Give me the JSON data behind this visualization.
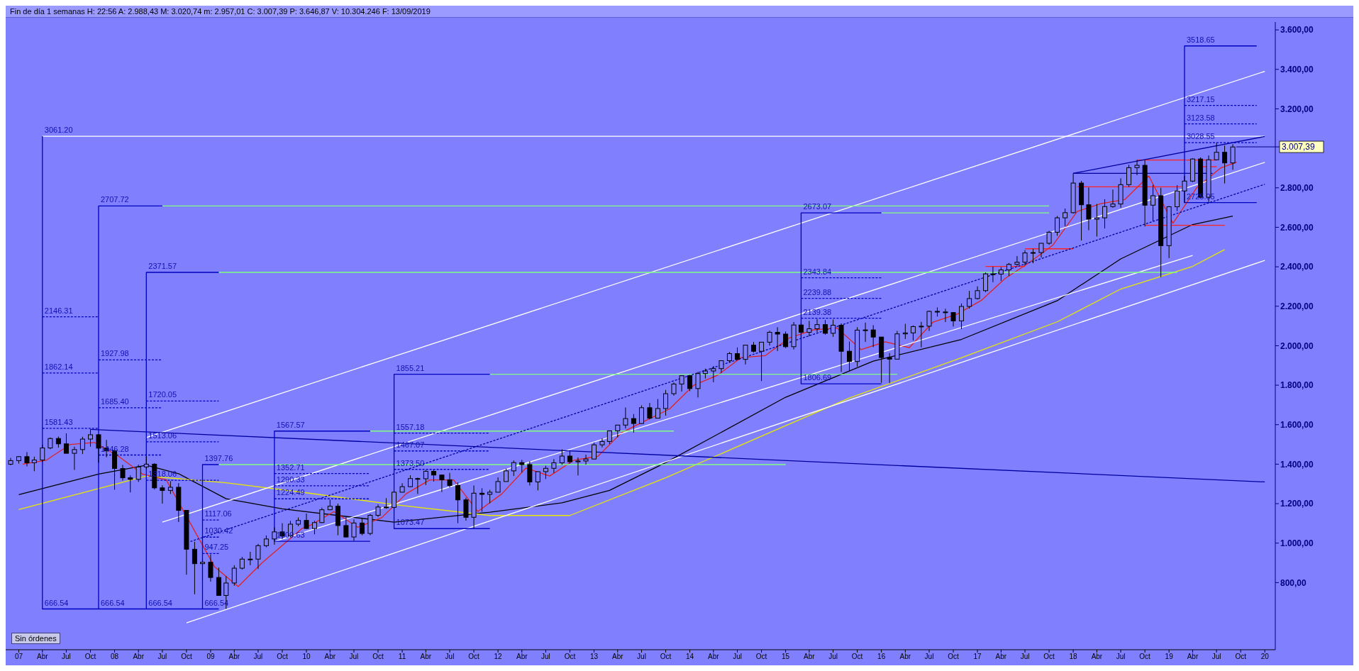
{
  "chart_data": {
    "type": "candlestick",
    "title": "Fin de día 1 semanas  H: 22:56  A: 2.988,43  M: 3.020,74  m: 2.957,01  C: 3.007,39  P: 3.646,87  V: 10.304.246  F: 13/09/2019",
    "color": "#000000",
    "x": [
      "2006-12",
      "2007-01",
      "2007-02",
      "2007-03",
      "2007-04",
      "2007-05",
      "2007-06",
      "2007-07",
      "2007-08",
      "2007-09",
      "2007-10",
      "2007-11",
      "2007-12",
      "2008-01",
      "2008-02",
      "2008-03",
      "2008-04",
      "2008-05",
      "2008-06",
      "2008-07",
      "2008-08",
      "2008-09",
      "2008-10",
      "2008-11",
      "2008-12",
      "2009-01",
      "2009-02",
      "2009-03",
      "2009-04",
      "2009-05",
      "2009-06",
      "2009-07",
      "2009-08",
      "2009-09",
      "2009-10",
      "2009-11",
      "2009-12",
      "2010-01",
      "2010-02",
      "2010-03",
      "2010-04",
      "2010-05",
      "2010-06",
      "2010-07",
      "2010-08",
      "2010-09",
      "2010-10",
      "2010-11",
      "2010-12",
      "2011-01",
      "2011-02",
      "2011-03",
      "2011-04",
      "2011-05",
      "2011-06",
      "2011-07",
      "2011-08",
      "2011-09",
      "2011-10",
      "2011-11",
      "2011-12",
      "2012-01",
      "2012-02",
      "2012-03",
      "2012-04",
      "2012-05",
      "2012-06",
      "2012-07",
      "2012-08",
      "2012-09",
      "2012-10",
      "2012-11",
      "2012-12",
      "2013-01",
      "2013-02",
      "2013-03",
      "2013-04",
      "2013-05",
      "2013-06",
      "2013-07",
      "2013-08",
      "2013-09",
      "2013-10",
      "2013-11",
      "2013-12",
      "2014-01",
      "2014-02",
      "2014-03",
      "2014-04",
      "2014-05",
      "2014-06",
      "2014-07",
      "2014-08",
      "2014-09",
      "2014-10",
      "2014-11",
      "2014-12",
      "2015-01",
      "2015-02",
      "2015-03",
      "2015-04",
      "2015-05",
      "2015-06",
      "2015-07",
      "2015-08",
      "2015-09",
      "2015-10",
      "2015-11",
      "2015-12",
      "2016-01",
      "2016-02",
      "2016-03",
      "2016-04",
      "2016-05",
      "2016-06",
      "2016-07",
      "2016-08",
      "2016-09",
      "2016-10",
      "2016-11",
      "2016-12",
      "2017-01",
      "2017-02",
      "2017-03",
      "2017-04",
      "2017-05",
      "2017-06",
      "2017-07",
      "2017-08",
      "2017-09",
      "2017-10",
      "2017-11",
      "2017-12",
      "2018-01",
      "2018-02",
      "2018-03",
      "2018-04",
      "2018-05",
      "2018-06",
      "2018-07",
      "2018-08",
      "2018-09",
      "2018-10",
      "2018-11",
      "2018-12",
      "2019-01",
      "2019-02",
      "2019-03",
      "2019-04",
      "2019-05",
      "2019-06",
      "2019-07",
      "2019-08",
      "2019-09"
    ],
    "ohlc": [
      [
        1400,
        1432,
        1394,
        1418
      ],
      [
        1418,
        1441,
        1403,
        1438
      ],
      [
        1438,
        1461,
        1389,
        1407
      ],
      [
        1407,
        1438,
        1364,
        1421
      ],
      [
        1421,
        1499,
        1411,
        1482
      ],
      [
        1482,
        1535,
        1476,
        1530
      ],
      [
        1530,
        1540,
        1484,
        1503
      ],
      [
        1503,
        1556,
        1455,
        1455
      ],
      [
        1455,
        1489,
        1371,
        1474
      ],
      [
        1474,
        1539,
        1451,
        1527
      ],
      [
        1527,
        1576,
        1489,
        1549
      ],
      [
        1549,
        1552,
        1407,
        1481
      ],
      [
        1481,
        1523,
        1435,
        1468
      ],
      [
        1468,
        1471,
        1271,
        1378
      ],
      [
        1378,
        1396,
        1317,
        1331
      ],
      [
        1331,
        1343,
        1257,
        1323
      ],
      [
        1323,
        1397,
        1310,
        1386
      ],
      [
        1386,
        1440,
        1374,
        1400
      ],
      [
        1400,
        1405,
        1272,
        1280
      ],
      [
        1280,
        1293,
        1200,
        1267
      ],
      [
        1267,
        1314,
        1249,
        1283
      ],
      [
        1283,
        1304,
        1107,
        1166
      ],
      [
        1166,
        1167,
        840,
        969
      ],
      [
        969,
        1007,
        741,
        896
      ],
      [
        896,
        919,
        816,
        903
      ],
      [
        903,
        943,
        805,
        826
      ],
      [
        826,
        876,
        735,
        735
      ],
      [
        735,
        832,
        667,
        798
      ],
      [
        798,
        888,
        784,
        873
      ],
      [
        873,
        930,
        866,
        919
      ],
      [
        919,
        956,
        888,
        919
      ],
      [
        919,
        996,
        869,
        987
      ],
      [
        987,
        1039,
        979,
        1021
      ],
      [
        1021,
        1080,
        992,
        1057
      ],
      [
        1057,
        1101,
        1020,
        1036
      ],
      [
        1036,
        1113,
        1030,
        1096
      ],
      [
        1096,
        1130,
        1086,
        1115
      ],
      [
        1115,
        1150,
        1071,
        1074
      ],
      [
        1074,
        1113,
        1045,
        1104
      ],
      [
        1104,
        1180,
        1102,
        1169
      ],
      [
        1169,
        1220,
        1167,
        1187
      ],
      [
        1187,
        1200,
        1040,
        1089
      ],
      [
        1089,
        1131,
        1028,
        1031
      ],
      [
        1031,
        1120,
        1011,
        1102
      ],
      [
        1102,
        1129,
        1040,
        1049
      ],
      [
        1049,
        1148,
        1040,
        1141
      ],
      [
        1141,
        1196,
        1132,
        1183
      ],
      [
        1183,
        1228,
        1174,
        1181
      ],
      [
        1181,
        1263,
        1174,
        1258
      ],
      [
        1258,
        1303,
        1257,
        1286
      ],
      [
        1286,
        1344,
        1284,
        1327
      ],
      [
        1327,
        1332,
        1249,
        1326
      ],
      [
        1326,
        1370,
        1294,
        1364
      ],
      [
        1364,
        1371,
        1312,
        1345
      ],
      [
        1345,
        1346,
        1259,
        1321
      ],
      [
        1321,
        1356,
        1282,
        1292
      ],
      [
        1292,
        1308,
        1101,
        1219
      ],
      [
        1219,
        1230,
        1114,
        1131
      ],
      [
        1131,
        1292,
        1075,
        1253
      ],
      [
        1253,
        1278,
        1159,
        1247
      ],
      [
        1247,
        1270,
        1202,
        1258
      ],
      [
        1258,
        1333,
        1258,
        1312
      ],
      [
        1312,
        1378,
        1312,
        1366
      ],
      [
        1366,
        1419,
        1340,
        1408
      ],
      [
        1408,
        1422,
        1358,
        1398
      ],
      [
        1398,
        1415,
        1292,
        1310
      ],
      [
        1310,
        1363,
        1267,
        1362
      ],
      [
        1362,
        1392,
        1325,
        1379
      ],
      [
        1379,
        1426,
        1355,
        1407
      ],
      [
        1407,
        1475,
        1397,
        1441
      ],
      [
        1441,
        1470,
        1403,
        1412
      ],
      [
        1412,
        1434,
        1343,
        1416
      ],
      [
        1416,
        1448,
        1398,
        1426
      ],
      [
        1426,
        1510,
        1426,
        1498
      ],
      [
        1498,
        1531,
        1485,
        1515
      ],
      [
        1515,
        1570,
        1502,
        1569
      ],
      [
        1569,
        1598,
        1536,
        1598
      ],
      [
        1598,
        1687,
        1581,
        1631
      ],
      [
        1631,
        1654,
        1560,
        1606
      ],
      [
        1606,
        1698,
        1605,
        1686
      ],
      [
        1686,
        1710,
        1627,
        1633
      ],
      [
        1633,
        1730,
        1633,
        1682
      ],
      [
        1682,
        1776,
        1646,
        1757
      ],
      [
        1757,
        1814,
        1747,
        1806
      ],
      [
        1806,
        1849,
        1768,
        1848
      ],
      [
        1848,
        1851,
        1770,
        1783
      ],
      [
        1783,
        1867,
        1738,
        1859
      ],
      [
        1859,
        1884,
        1834,
        1872
      ],
      [
        1872,
        1897,
        1815,
        1884
      ],
      [
        1884,
        1925,
        1863,
        1924
      ],
      [
        1924,
        1968,
        1916,
        1960
      ],
      [
        1960,
        1991,
        1931,
        1931
      ],
      [
        1931,
        2005,
        1905,
        2003
      ],
      [
        2003,
        2019,
        1965,
        1972
      ],
      [
        1972,
        2018,
        1821,
        2018
      ],
      [
        2018,
        2076,
        2001,
        2068
      ],
      [
        2068,
        2094,
        1973,
        2059
      ],
      [
        2059,
        2072,
        1988,
        1995
      ],
      [
        1995,
        2120,
        1981,
        2105
      ],
      [
        2105,
        2117,
        2040,
        2068
      ],
      [
        2068,
        2126,
        2048,
        2086
      ],
      [
        2086,
        2135,
        2068,
        2107
      ],
      [
        2107,
        2130,
        2056,
        2063
      ],
      [
        2063,
        2133,
        2045,
        2104
      ],
      [
        2104,
        2113,
        1867,
        1972
      ],
      [
        1972,
        2021,
        1872,
        1920
      ],
      [
        1920,
        2094,
        1894,
        2079
      ],
      [
        2079,
        2117,
        2019,
        2080
      ],
      [
        2080,
        2104,
        1993,
        2044
      ],
      [
        2044,
        2044,
        1812,
        1940
      ],
      [
        1940,
        1963,
        1810,
        1932
      ],
      [
        1932,
        2075,
        1932,
        2060
      ],
      [
        2060,
        2111,
        2034,
        2065
      ],
      [
        2065,
        2103,
        2026,
        2097
      ],
      [
        2097,
        2121,
        1992,
        2099
      ],
      [
        2099,
        2178,
        2075,
        2174
      ],
      [
        2174,
        2194,
        2148,
        2171
      ],
      [
        2171,
        2187,
        2120,
        2168
      ],
      [
        2168,
        2169,
        2097,
        2126
      ],
      [
        2126,
        2214,
        2084,
        2199
      ],
      [
        2199,
        2278,
        2188,
        2239
      ],
      [
        2239,
        2301,
        2234,
        2279
      ],
      [
        2279,
        2371,
        2271,
        2364
      ],
      [
        2364,
        2401,
        2322,
        2363
      ],
      [
        2363,
        2398,
        2328,
        2384
      ],
      [
        2384,
        2419,
        2353,
        2412
      ],
      [
        2412,
        2454,
        2406,
        2423
      ],
      [
        2423,
        2484,
        2407,
        2470
      ],
      [
        2470,
        2491,
        2418,
        2472
      ],
      [
        2472,
        2520,
        2447,
        2519
      ],
      [
        2519,
        2582,
        2511,
        2575
      ],
      [
        2575,
        2657,
        2557,
        2648
      ],
      [
        2648,
        2695,
        2605,
        2674
      ],
      [
        2674,
        2873,
        2670,
        2824
      ],
      [
        2824,
        2835,
        2533,
        2714
      ],
      [
        2714,
        2801,
        2585,
        2641
      ],
      [
        2641,
        2718,
        2553,
        2648
      ],
      [
        2648,
        2742,
        2594,
        2705
      ],
      [
        2705,
        2791,
        2699,
        2718
      ],
      [
        2718,
        2848,
        2699,
        2816
      ],
      [
        2816,
        2917,
        2803,
        2902
      ],
      [
        2902,
        2941,
        2864,
        2914
      ],
      [
        2914,
        2940,
        2604,
        2712
      ],
      [
        2712,
        2815,
        2631,
        2760
      ],
      [
        2760,
        2800,
        2347,
        2507
      ],
      [
        2507,
        2708,
        2444,
        2704
      ],
      [
        2704,
        2813,
        2682,
        2784
      ],
      [
        2784,
        2860,
        2723,
        2834
      ],
      [
        2834,
        2949,
        2829,
        2946
      ],
      [
        2946,
        2954,
        2750,
        2752
      ],
      [
        2752,
        2964,
        2728,
        2942
      ],
      [
        2942,
        3028,
        2939,
        2980
      ],
      [
        2980,
        3014,
        2822,
        2926
      ],
      [
        2926,
        3021,
        2891,
        3007
      ]
    ],
    "series": [
      {
        "type": "line",
        "color": "#000000",
        "x": [
          "2007-01",
          "2007-11",
          "2008-05",
          "2008-09",
          "2009-03",
          "2009-10",
          "2010-12",
          "2011-12",
          "2012-09",
          "2013-03",
          "2013-10",
          "2015-01",
          "2015-12",
          "2016-11",
          "2017-11",
          "2018-07",
          "2019-04",
          "2019-09"
        ],
        "values": [
          1246,
          1350,
          1395,
          1352,
          1225,
          1174,
          1106,
          1157,
          1204,
          1267,
          1408,
          1739,
          1922,
          2032,
          2228,
          2440,
          2614,
          2657
        ]
      },
      {
        "type": "line",
        "color": "#e8e800",
        "x": [
          "2007-01",
          "2008-05",
          "2009-03",
          "2010-01",
          "2010-12",
          "2011-12",
          "2012-10",
          "2013-10",
          "2015-09",
          "2016-11",
          "2017-11",
          "2018-07",
          "2019-04",
          "2019-08"
        ],
        "values": [
          1170,
          1340,
          1306,
          1255,
          1195,
          1140,
          1140,
          1331,
          1735,
          1939,
          2121,
          2287,
          2402,
          2487
        ]
      },
      {
        "type": "line",
        "color": "#e02020",
        "x": [
          "2007-01-16",
          "2007-04-16",
          "2007-07-16",
          "2007-10-16",
          "2008-01-16",
          "2008-04-16",
          "2008-07-16",
          "2008-10-16",
          "2009-01-16",
          "2009-04-16",
          "2009-07-16",
          "2009-12-16",
          "2010-01-16",
          "2010-04-16",
          "2010-07-16",
          "2010-10-16",
          "2011-01-16",
          "2011-04-16",
          "2011-07-16",
          "2011-10-16",
          "2012-01-16",
          "2012-04-16",
          "2012-07-16",
          "2012-10-16",
          "2013-01-16",
          "2013-04-16",
          "2013-07-16",
          "2013-10-16",
          "2014-01-16",
          "2014-04-16",
          "2014-07-16",
          "2014-10-16",
          "2015-01-16",
          "2015-04-16",
          "2015-07-16",
          "2015-10-16",
          "2016-01-16",
          "2016-04-16",
          "2016-07-16",
          "2016-10-16",
          "2017-01-16",
          "2017-04-16",
          "2017-07-16",
          "2017-10-16",
          "2018-01-16",
          "2018-04-16",
          "2018-07-16",
          "2018-10-16",
          "2019-01-16",
          "2019-04-16",
          "2019-07-16",
          "2019-09-16"
        ],
        "values": [
          1400,
          1420,
          1500,
          1510,
          1440,
          1350,
          1320,
          1100,
          880,
          780,
          900,
          1075,
          1090,
          1160,
          1080,
          1130,
          1250,
          1320,
          1320,
          1160,
          1250,
          1380,
          1340,
          1420,
          1440,
          1560,
          1620,
          1680,
          1800,
          1850,
          1940,
          1950,
          2040,
          2080,
          2090,
          1980,
          2020,
          1990,
          2120,
          2160,
          2230,
          2340,
          2420,
          2510,
          2680,
          2720,
          2740,
          2860,
          2620,
          2800,
          2900,
          2930
        ]
      },
      {
        "type": "line",
        "color": "#ffffff",
        "x": [
          "2008-05",
          "2020-01"
        ],
        "values": [
          1535,
          3390
        ]
      },
      {
        "type": "line",
        "color": "#ffffff",
        "x": [
          "2008-07",
          "2020-01"
        ],
        "values": [
          1106,
          2929
        ]
      },
      {
        "type": "line",
        "color": "#ffffff",
        "x": [
          "2008-10",
          "2020-01"
        ],
        "values": [
          596,
          2432
        ]
      },
      {
        "type": "line",
        "color": "#ffffff",
        "x": [
          "2009-09",
          "2019-04"
        ],
        "values": [
          1008,
          2457
        ]
      },
      {
        "type": "line",
        "color": "#ffffff",
        "x": [
          "2007-04",
          "2020-01"
        ],
        "values": [
          3061.2,
          3061.2
        ]
      },
      {
        "type": "line",
        "color": "#80ff80",
        "x": [
          "2008-07",
          "2017-10"
        ],
        "values": [
          2707.72,
          2707.72
        ]
      },
      {
        "type": "line",
        "color": "#80ff80",
        "x": [
          "2009-02",
          "2019-02"
        ],
        "values": [
          2371.57,
          2371.57
        ]
      },
      {
        "type": "line",
        "color": "#80ff80",
        "x": [
          "2009-02",
          "2015-01"
        ],
        "values": [
          1397.76,
          1397.76
        ]
      },
      {
        "type": "line",
        "color": "#80ff80",
        "x": [
          "2010-09",
          "2013-11"
        ],
        "values": [
          1567.57,
          1567.57
        ]
      },
      {
        "type": "line",
        "color": "#80ff80",
        "x": [
          "2011-12",
          "2016-03"
        ],
        "values": [
          1855.21,
          1855.21
        ]
      },
      {
        "type": "line",
        "color": "#80ff80",
        "x": [
          "2016-01",
          "2017-10"
        ],
        "values": [
          2673.07,
          2673.07
        ]
      },
      {
        "type": "line",
        "color": "#ff2020",
        "x": [
          "2018-09",
          "2019-07"
        ],
        "values": [
          2941,
          2941
        ]
      },
      {
        "type": "line",
        "color": "#ff2020",
        "x": [
          "2018-01-16",
          "2019-02-16"
        ],
        "values": [
          2805,
          2805
        ]
      },
      {
        "type": "line",
        "color": "#ff2020",
        "x": [
          "2018-10",
          "2019-08"
        ],
        "values": [
          2610,
          2610
        ]
      },
      {
        "type": "line",
        "color": "#ff2020",
        "x": [
          "2019-05",
          "2019-07"
        ],
        "values": [
          2907,
          2907
        ]
      },
      {
        "type": "line",
        "color": "#ff2020",
        "x": [
          "2017-07",
          "2018-01"
        ],
        "values": [
          2491,
          2491
        ]
      },
      {
        "type": "line",
        "color": "#ff2020",
        "x": [
          "2017-02",
          "2017-07"
        ],
        "values": [
          2402,
          2402
        ]
      },
      {
        "type": "line",
        "color": "#0000a0",
        "x": [
          "2007-10",
          "2020-01"
        ],
        "values": [
          1576,
          1310
        ]
      },
      {
        "type": "line",
        "color": "#0000a0",
        "x": [
          "2018-01",
          "2020-01"
        ],
        "values": [
          2873,
          3060
        ]
      },
      {
        "type": "line",
        "color": "#0000a0",
        "x": [
          "2018-01",
          "2019-06-16"
        ],
        "values": [
          2873,
          2873
        ]
      },
      {
        "type": "line",
        "color": "#0000a0",
        "line_style": "dashed",
        "x": [
          "2008-10-16",
          "2020-01"
        ],
        "values": [
          1008,
          2818
        ]
      },
      {
        "type": "line",
        "color": "#0000c0",
        "x": [
          "2007-04",
          "2007-04",
          "2007-04",
          "2009-02"
        ],
        "values": [
          3061.2,
          666.54,
          666.54,
          666.54
        ]
      },
      {
        "type": "line",
        "color": "#0000c0",
        "x": [
          "2008-07",
          "2007-11",
          "2007-11"
        ],
        "values": [
          2707.72,
          2707.72,
          666.54
        ]
      },
      {
        "type": "line",
        "color": "#0000c0",
        "x": [
          "2009-02",
          "2008-05",
          "2008-05"
        ],
        "values": [
          2371.57,
          2371.57,
          666.54
        ]
      },
      {
        "type": "line",
        "color": "#0000c0",
        "x": [
          "2009-02",
          "2008-12",
          "2008-12"
        ],
        "values": [
          1397.76,
          1397.76,
          666.54
        ]
      },
      {
        "type": "line",
        "color": "#0000c0",
        "x": [
          "2010-09",
          "2009-09",
          "2009-09",
          "2010-09"
        ],
        "values": [
          1567.57,
          1567.57,
          1009.63,
          1009.63
        ]
      },
      {
        "type": "line",
        "color": "#0000c0",
        "x": [
          "2011-12",
          "2010-12",
          "2010-12",
          "2011-12"
        ],
        "values": [
          1855.21,
          1855.21,
          1073.47,
          1073.47
        ]
      },
      {
        "type": "line",
        "color": "#0000c0",
        "x": [
          "2016-01",
          "2015-03",
          "2015-03",
          "2016-01"
        ],
        "values": [
          2673.07,
          2673.07,
          1806.69,
          1806.69
        ]
      },
      {
        "type": "line",
        "color": "#0000c0",
        "x": [
          "2019-12",
          "2019-03",
          "2019-03",
          "2019-12"
        ],
        "values": [
          3518.65,
          3518.65,
          2725.05,
          2725.05
        ]
      },
      {
        "type": "line",
        "color": "#0000c0",
        "line_style": "dashed",
        "x": [
          "2007-04",
          "2007-11"
        ],
        "values": [
          2146.31,
          2146.31
        ]
      },
      {
        "type": "line",
        "color": "#0000c0",
        "line_style": "dashed",
        "x": [
          "2007-04",
          "2007-11"
        ],
        "values": [
          1862.14,
          1862.14
        ]
      },
      {
        "type": "line",
        "color": "#0000c0",
        "line_style": "dashed",
        "x": [
          "2007-04",
          "2007-11"
        ],
        "values": [
          1581.43,
          1581.43
        ]
      },
      {
        "type": "line",
        "color": "#0000c0",
        "line_style": "dashed",
        "x": [
          "2007-11",
          "2008-07"
        ],
        "values": [
          1927.98,
          1927.98
        ]
      },
      {
        "type": "line",
        "color": "#0000c0",
        "line_style": "dashed",
        "x": [
          "2007-11",
          "2008-07"
        ],
        "values": [
          1685.4,
          1685.4
        ]
      },
      {
        "type": "line",
        "color": "#0000c0",
        "line_style": "dashed",
        "x": [
          "2007-11",
          "2008-07"
        ],
        "values": [
          1446.28,
          1446.28
        ]
      },
      {
        "type": "line",
        "color": "#0000c0",
        "line_style": "dashed",
        "x": [
          "2008-05",
          "2009-02"
        ],
        "values": [
          1720.05,
          1720.05
        ]
      },
      {
        "type": "line",
        "color": "#0000c0",
        "line_style": "dashed",
        "x": [
          "2008-05",
          "2009-02"
        ],
        "values": [
          1513.06,
          1513.06
        ]
      },
      {
        "type": "line",
        "color": "#0000c0",
        "line_style": "dashed",
        "x": [
          "2008-05",
          "2009-02"
        ],
        "values": [
          1318.06,
          1318.06
        ]
      },
      {
        "type": "line",
        "color": "#0000c0",
        "line_style": "dashed",
        "x": [
          "2008-12",
          "2009-02"
        ],
        "values": [
          1117.06,
          1117.06
        ]
      },
      {
        "type": "line",
        "color": "#0000c0",
        "line_style": "dashed",
        "x": [
          "2008-12",
          "2009-02"
        ],
        "values": [
          1030.42,
          1030.42
        ]
      },
      {
        "type": "line",
        "color": "#0000c0",
        "line_style": "dashed",
        "x": [
          "2008-12",
          "2009-02"
        ],
        "values": [
          947.25,
          947.25
        ]
      },
      {
        "type": "line",
        "color": "#0000c0",
        "line_style": "dashed",
        "x": [
          "2009-09",
          "2010-09"
        ],
        "values": [
          1352.71,
          1352.71
        ]
      },
      {
        "type": "line",
        "color": "#0000c0",
        "line_style": "dashed",
        "x": [
          "2009-09",
          "2010-09"
        ],
        "values": [
          1290.33,
          1290.33
        ]
      },
      {
        "type": "line",
        "color": "#0000c0",
        "line_style": "dashed",
        "x": [
          "2009-09",
          "2010-09"
        ],
        "values": [
          1224.49,
          1224.49
        ]
      },
      {
        "type": "line",
        "color": "#0000c0",
        "line_style": "dashed",
        "x": [
          "2010-12",
          "2011-12"
        ],
        "values": [
          1557.18,
          1557.18
        ]
      },
      {
        "type": "line",
        "color": "#0000c0",
        "line_style": "dashed",
        "x": [
          "2010-12",
          "2011-12"
        ],
        "values": [
          1467.07,
          1467.07
        ]
      },
      {
        "type": "line",
        "color": "#0000c0",
        "line_style": "dashed",
        "x": [
          "2010-12",
          "2011-12"
        ],
        "values": [
          1373.5,
          1373.5
        ]
      },
      {
        "type": "line",
        "color": "#0000c0",
        "line_style": "dashed",
        "x": [
          "2015-03",
          "2016-01"
        ],
        "values": [
          2343.84,
          2343.84
        ]
      },
      {
        "type": "line",
        "color": "#0000c0",
        "line_style": "dashed",
        "x": [
          "2015-03",
          "2016-01"
        ],
        "values": [
          2239.88,
          2239.88
        ]
      },
      {
        "type": "line",
        "color": "#0000c0",
        "line_style": "dashed",
        "x": [
          "2015-03",
          "2016-01"
        ],
        "values": [
          2139.38,
          2139.38
        ]
      },
      {
        "type": "line",
        "color": "#0000c0",
        "line_style": "dashed",
        "x": [
          "2019-03",
          "2019-12"
        ],
        "values": [
          3217.15,
          3217.15
        ]
      },
      {
        "type": "line",
        "color": "#0000c0",
        "line_style": "dashed",
        "x": [
          "2019-03",
          "2019-12"
        ],
        "values": [
          3123.58,
          3123.58
        ]
      },
      {
        "type": "line",
        "color": "#0000c0",
        "line_style": "dashed",
        "x": [
          "2019-03",
          "2019-12"
        ],
        "values": [
          3028.55,
          3028.55
        ]
      }
    ],
    "annotations": [
      {
        "text": "3061.20",
        "x": "2007-04",
        "y": 3061.2
      },
      {
        "text": "2146.31",
        "x": "2007-04",
        "y": 2146.31
      },
      {
        "text": "1862.14",
        "x": "2007-04",
        "y": 1862.14
      },
      {
        "text": "1581.43",
        "x": "2007-04",
        "y": 1581.43
      },
      {
        "text": "666.54",
        "x": "2007-04",
        "y": 666.54
      },
      {
        "text": "2707.72",
        "x": "2007-11",
        "y": 2707.72
      },
      {
        "text": "1927.98",
        "x": "2007-11",
        "y": 1927.98
      },
      {
        "text": "1685.40",
        "x": "2007-11",
        "y": 1685.4
      },
      {
        "text": "1446.28",
        "x": "2007-11",
        "y": 1446.28
      },
      {
        "text": "666.54",
        "x": "2007-11",
        "y": 666.54
      },
      {
        "text": "2371.57",
        "x": "2008-05",
        "y": 2371.57
      },
      {
        "text": "1720.05",
        "x": "2008-05",
        "y": 1720.05
      },
      {
        "text": "1513.06",
        "x": "2008-05",
        "y": 1513.06
      },
      {
        "text": "1318.06",
        "x": "2008-05",
        "y": 1318.06
      },
      {
        "text": "666.54",
        "x": "2008-05",
        "y": 666.54
      },
      {
        "text": "1397.76",
        "x": "2008-12",
        "y": 1397.76
      },
      {
        "text": "1117.06",
        "x": "2008-12",
        "y": 1117.06
      },
      {
        "text": "1030.42",
        "x": "2008-12",
        "y": 1030.42
      },
      {
        "text": "947.25",
        "x": "2008-12",
        "y": 947.25
      },
      {
        "text": "666.54",
        "x": "2008-12",
        "y": 666.54
      },
      {
        "text": "1567.57",
        "x": "2009-09",
        "y": 1567.57
      },
      {
        "text": "1352.71",
        "x": "2009-09",
        "y": 1352.71
      },
      {
        "text": "1290.33",
        "x": "2009-09",
        "y": 1290.33
      },
      {
        "text": "1224.49",
        "x": "2009-09",
        "y": 1224.49
      },
      {
        "text": "1009.63",
        "x": "2009-09",
        "y": 1009.63
      },
      {
        "text": "1855.21",
        "x": "2010-12",
        "y": 1855.21
      },
      {
        "text": "1557.18",
        "x": "2010-12",
        "y": 1557.18
      },
      {
        "text": "1467.07",
        "x": "2010-12",
        "y": 1467.07
      },
      {
        "text": "1373.50",
        "x": "2010-12",
        "y": 1373.5
      },
      {
        "text": "1073.47",
        "x": "2010-12",
        "y": 1073.47
      },
      {
        "text": "2673.07",
        "x": "2015-03",
        "y": 2673.07
      },
      {
        "text": "2343.84",
        "x": "2015-03",
        "y": 2343.84
      },
      {
        "text": "2239.88",
        "x": "2015-03",
        "y": 2239.88
      },
      {
        "text": "2139.38",
        "x": "2015-03",
        "y": 2139.38
      },
      {
        "text": "1806.69",
        "x": "2015-03",
        "y": 1806.69
      },
      {
        "text": "3518.65",
        "x": "2019-03",
        "y": 3518.65
      },
      {
        "text": "3217.15",
        "x": "2019-03",
        "y": 3217.15
      },
      {
        "text": "3123.58",
        "x": "2019-03",
        "y": 3123.58
      },
      {
        "text": "3028.55",
        "x": "2019-03",
        "y": 3028.55
      },
      {
        "text": "2725.05",
        "x": "2019-03",
        "y": 2725.05
      },
      {
        "text": "3.007,39",
        "x": "2019-09",
        "y": 3007.39
      },
      "Sin órdenes"
    ],
    "xlim": [
      "2006-11-12",
      "2020-02-10"
    ],
    "ylim": [
      460,
      3640
    ],
    "xticks": [
      {
        "value": "2007-01-01",
        "label": "07"
      },
      {
        "value": "2007-04-01",
        "label": "Abr"
      },
      {
        "value": "2007-07-01",
        "label": "Jul"
      },
      {
        "value": "2007-10-01",
        "label": "Oct"
      },
      {
        "value": "2008-01-01",
        "label": "08"
      },
      {
        "value": "2008-04-01",
        "label": "Abr"
      },
      {
        "value": "2008-07-01",
        "label": "Jul"
      },
      {
        "value": "2008-10-01",
        "label": "Oct"
      },
      {
        "value": "2009-01-01",
        "label": "09"
      },
      {
        "value": "2009-04-01",
        "label": "Abr"
      },
      {
        "value": "2009-07-01",
        "label": "Jul"
      },
      {
        "value": "2009-10-01",
        "label": "Oct"
      },
      {
        "value": "2010-01-01",
        "label": "10"
      },
      {
        "value": "2010-04-01",
        "label": "Abr"
      },
      {
        "value": "2010-07-01",
        "label": "Jul"
      },
      {
        "value": "2010-10-01",
        "label": "Oct"
      },
      {
        "value": "2011-01-01",
        "label": "11"
      },
      {
        "value": "2011-04-01",
        "label": "Abr"
      },
      {
        "value": "2011-07-01",
        "label": "Jul"
      },
      {
        "value": "2011-10-01",
        "label": "Oct"
      },
      {
        "value": "2012-01-01",
        "label": "12"
      },
      {
        "value": "2012-04-01",
        "label": "Abr"
      },
      {
        "value": "2012-07-01",
        "label": "Jul"
      },
      {
        "value": "2012-10-01",
        "label": "Oct"
      },
      {
        "value": "2013-01-01",
        "label": "13"
      },
      {
        "value": "2013-04-01",
        "label": "Abr"
      },
      {
        "value": "2013-07-01",
        "label": "Jul"
      },
      {
        "value": "2013-10-01",
        "label": "Oct"
      },
      {
        "value": "2014-01-01",
        "label": "14"
      },
      {
        "value": "2014-04-01",
        "label": "Abr"
      },
      {
        "value": "2014-07-01",
        "label": "Jul"
      },
      {
        "value": "2014-10-01",
        "label": "Oct"
      },
      {
        "value": "2015-01-01",
        "label": "15"
      },
      {
        "value": "2015-04-01",
        "label": "Abr"
      },
      {
        "value": "2015-07-01",
        "label": "Jul"
      },
      {
        "value": "2015-10-01",
        "label": "Oct"
      },
      {
        "value": "2016-01-01",
        "label": "16"
      },
      {
        "value": "2016-04-01",
        "label": "Abr"
      },
      {
        "value": "2016-07-01",
        "label": "Jul"
      },
      {
        "value": "2016-10-01",
        "label": "Oct"
      },
      {
        "value": "2017-01-01",
        "label": "17"
      },
      {
        "value": "2017-04-01",
        "label": "Abr"
      },
      {
        "value": "2017-07-01",
        "label": "Jul"
      },
      {
        "value": "2017-10-01",
        "label": "Oct"
      },
      {
        "value": "2018-01-01",
        "label": "18"
      },
      {
        "value": "2018-04-01",
        "label": "Abr"
      },
      {
        "value": "2018-07-01",
        "label": "Jul"
      },
      {
        "value": "2018-10-01",
        "label": "Oct"
      },
      {
        "value": "2019-01-01",
        "label": "19"
      },
      {
        "value": "2019-04-01",
        "label": "Abr"
      },
      {
        "value": "2019-07-01",
        "label": "Jul"
      },
      {
        "value": "2019-10-01",
        "label": "Oct"
      },
      {
        "value": "2020-01-01",
        "label": "20"
      }
    ],
    "yticks": [
      {
        "value": 800,
        "label": "800,00"
      },
      {
        "value": 1000,
        "label": "1.000,00"
      },
      {
        "value": 1200,
        "label": "1.200,00"
      },
      {
        "value": 1400,
        "label": "1.400,00"
      },
      {
        "value": 1600,
        "label": "1.600,00"
      },
      {
        "value": 1800,
        "label": "1.800,00"
      },
      {
        "value": 2000,
        "label": "2.000,00"
      },
      {
        "value": 2200,
        "label": "2.200,00"
      },
      {
        "value": 2400,
        "label": "2.400,00"
      },
      {
        "value": 2600,
        "label": "2.600,00"
      },
      {
        "value": 2800,
        "label": "2.800,00"
      },
      {
        "value": 3200,
        "label": "3.200,00"
      },
      {
        "value": 3400,
        "label": "3.400,00"
      },
      {
        "value": 3600,
        "label": "3.600,00"
      }
    ]
  }
}
